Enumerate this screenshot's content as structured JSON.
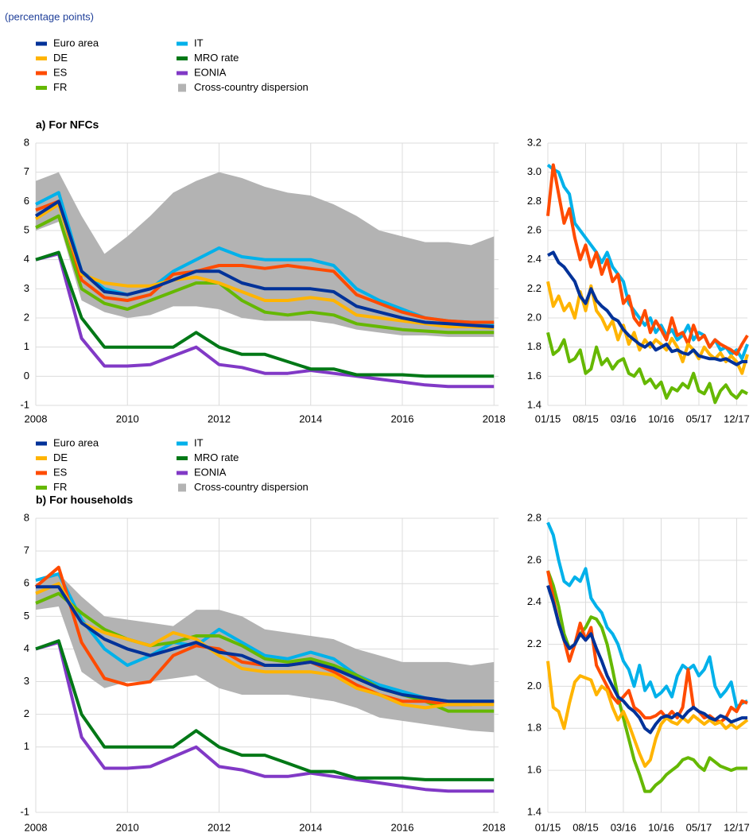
{
  "subtitle": "(percentage points)",
  "chart_data": [
    {
      "type": "line",
      "title": "a) For NFCs",
      "x": [
        2008,
        2008.5,
        2009,
        2009.5,
        2010,
        2010.5,
        2011,
        2011.5,
        2012,
        2012.5,
        2013,
        2013.5,
        2014,
        2014.5,
        2015,
        2015.5,
        2016,
        2016.5,
        2017,
        2017.5,
        2018
      ],
      "xlim": [
        2008,
        2018.1
      ],
      "xticks": [
        2008,
        2010,
        2012,
        2014,
        2016,
        2018
      ],
      "ylim": [
        -1,
        8
      ],
      "yticks": [
        -1,
        0,
        1,
        2,
        3,
        4,
        5,
        6,
        7,
        8
      ],
      "grid": true,
      "band": {
        "name": "Cross-country dispersion",
        "color": "#b3b3b3",
        "upper": [
          6.7,
          7.0,
          5.5,
          4.2,
          4.8,
          5.5,
          6.3,
          6.7,
          7.0,
          6.8,
          6.5,
          6.3,
          6.2,
          5.9,
          5.5,
          5.0,
          4.8,
          4.6,
          4.6,
          4.5,
          4.8
        ],
        "lower": [
          5.0,
          5.3,
          2.6,
          2.2,
          2.0,
          2.1,
          2.4,
          2.4,
          2.3,
          2.0,
          1.9,
          1.9,
          1.9,
          1.8,
          1.6,
          1.5,
          1.4,
          1.4,
          1.35,
          1.35,
          1.35
        ]
      },
      "series": [
        {
          "name": "Euro area",
          "color": "#003299",
          "values": [
            5.5,
            6.0,
            3.6,
            2.9,
            2.8,
            3.0,
            3.3,
            3.6,
            3.6,
            3.2,
            3.0,
            3.0,
            3.0,
            2.9,
            2.4,
            2.2,
            2.0,
            1.85,
            1.8,
            1.75,
            1.7
          ]
        },
        {
          "name": "DE",
          "color": "#ffb400",
          "values": [
            5.4,
            5.9,
            3.5,
            3.2,
            3.1,
            3.1,
            3.3,
            3.4,
            3.2,
            2.9,
            2.6,
            2.6,
            2.7,
            2.6,
            2.1,
            2.0,
            1.9,
            1.8,
            1.7,
            1.7,
            1.65
          ]
        },
        {
          "name": "ES",
          "color": "#ff4b00",
          "values": [
            5.7,
            6.0,
            3.3,
            2.7,
            2.6,
            2.8,
            3.5,
            3.6,
            3.8,
            3.8,
            3.7,
            3.8,
            3.7,
            3.6,
            2.8,
            2.5,
            2.2,
            2.0,
            1.9,
            1.85,
            1.85
          ]
        },
        {
          "name": "FR",
          "color": "#65b800",
          "values": [
            5.1,
            5.5,
            3.0,
            2.5,
            2.3,
            2.6,
            2.9,
            3.2,
            3.2,
            2.6,
            2.2,
            2.1,
            2.2,
            2.1,
            1.8,
            1.7,
            1.6,
            1.55,
            1.5,
            1.5,
            1.5
          ]
        },
        {
          "name": "IT",
          "color": "#00b1ea",
          "values": [
            5.9,
            6.3,
            3.6,
            3.0,
            2.8,
            3.0,
            3.6,
            4.0,
            4.4,
            4.1,
            4.0,
            4.0,
            4.0,
            3.8,
            3.0,
            2.6,
            2.3,
            2.0,
            1.9,
            1.85,
            1.8
          ]
        },
        {
          "name": "MRO rate",
          "color": "#007816",
          "values": [
            4.0,
            4.25,
            2.0,
            1.0,
            1.0,
            1.0,
            1.0,
            1.5,
            1.0,
            0.75,
            0.75,
            0.5,
            0.25,
            0.25,
            0.05,
            0.05,
            0.05,
            0,
            0,
            0,
            0
          ]
        },
        {
          "name": "EONIA",
          "color": "#8139c6",
          "values": [
            4.0,
            4.2,
            1.3,
            0.35,
            0.35,
            0.4,
            0.7,
            1.0,
            0.4,
            0.3,
            0.1,
            0.1,
            0.2,
            0.1,
            0.0,
            -0.1,
            -0.2,
            -0.3,
            -0.35,
            -0.35,
            -0.35
          ]
        }
      ]
    },
    {
      "type": "line",
      "categories": [
        "01/15",
        null,
        null,
        null,
        null,
        null,
        null,
        "08/15",
        null,
        null,
        null,
        null,
        null,
        null,
        "03/16",
        null,
        null,
        null,
        null,
        null,
        null,
        "10/16",
        null,
        null,
        null,
        null,
        null,
        null,
        "05/17",
        null,
        null,
        null,
        null,
        null,
        null,
        "12/17",
        null,
        null
      ],
      "ylim": [
        1.4,
        3.2
      ],
      "yticks": [
        1.4,
        1.6,
        1.8,
        {
          "value": 2,
          "label": "2.0"
        },
        2.2,
        2.4,
        2.6,
        2.8,
        {
          "value": 3,
          "label": "3.0"
        },
        3.2
      ],
      "grid": true,
      "series": [
        {
          "name": "Euro area",
          "color": "#003299",
          "values": [
            2.43,
            2.45,
            2.38,
            2.35,
            2.3,
            2.25,
            2.15,
            2.1,
            2.2,
            2.12,
            2.08,
            2.05,
            2.0,
            1.98,
            1.92,
            1.88,
            1.85,
            1.82,
            1.8,
            1.83,
            1.78,
            1.8,
            1.82,
            1.77,
            1.78,
            1.76,
            1.75,
            1.78,
            1.74,
            1.73,
            1.72,
            1.72,
            1.71,
            1.72,
            1.7,
            1.68,
            1.7,
            1.7
          ]
        },
        {
          "name": "DE",
          "color": "#ffb400",
          "values": [
            2.25,
            2.08,
            2.15,
            2.05,
            2.1,
            2.0,
            2.18,
            2.05,
            2.22,
            2.05,
            2.0,
            1.92,
            1.98,
            1.85,
            1.95,
            1.82,
            1.9,
            1.78,
            1.85,
            1.8,
            1.85,
            1.82,
            1.78,
            1.86,
            1.8,
            1.7,
            1.82,
            1.78,
            1.72,
            1.8,
            1.75,
            1.72,
            1.76,
            1.7,
            1.74,
            1.7,
            1.62,
            1.75
          ]
        },
        {
          "name": "ES",
          "color": "#ff4b00",
          "values": [
            2.7,
            3.05,
            2.85,
            2.65,
            2.75,
            2.55,
            2.4,
            2.5,
            2.35,
            2.45,
            2.3,
            2.4,
            2.25,
            2.3,
            2.1,
            2.15,
            2.0,
            1.95,
            2.05,
            1.9,
            1.98,
            1.92,
            1.85,
            2.0,
            1.88,
            1.9,
            1.82,
            1.95,
            1.85,
            1.88,
            1.8,
            1.85,
            1.82,
            1.8,
            1.78,
            1.75,
            1.82,
            1.88
          ]
        },
        {
          "name": "FR",
          "color": "#65b800",
          "values": [
            1.9,
            1.75,
            1.78,
            1.85,
            1.7,
            1.72,
            1.78,
            1.62,
            1.65,
            1.8,
            1.68,
            1.72,
            1.65,
            1.7,
            1.72,
            1.62,
            1.6,
            1.65,
            1.55,
            1.58,
            1.52,
            1.56,
            1.45,
            1.52,
            1.5,
            1.55,
            1.52,
            1.62,
            1.5,
            1.48,
            1.55,
            1.42,
            1.5,
            1.54,
            1.48,
            1.45,
            1.5,
            1.48
          ]
        },
        {
          "name": "IT",
          "color": "#00b1ea",
          "values": [
            3.05,
            3.02,
            3.0,
            2.9,
            2.85,
            2.65,
            2.6,
            2.55,
            2.5,
            2.45,
            2.38,
            2.45,
            2.35,
            2.3,
            2.25,
            2.1,
            2.05,
            2.0,
            1.95,
            2.0,
            1.9,
            1.95,
            1.88,
            1.92,
            1.85,
            1.88,
            1.95,
            1.85,
            1.9,
            1.88,
            1.8,
            1.85,
            1.78,
            1.8,
            1.75,
            1.78,
            1.72,
            1.82
          ]
        }
      ]
    },
    {
      "type": "line",
      "title": "b) For households",
      "x": [
        2008,
        2008.5,
        2009,
        2009.5,
        2010,
        2010.5,
        2011,
        2011.5,
        2012,
        2012.5,
        2013,
        2013.5,
        2014,
        2014.5,
        2015,
        2015.5,
        2016,
        2016.5,
        2017,
        2017.5,
        2018
      ],
      "xlim": [
        2008,
        2018.1
      ],
      "xticks": [
        2008,
        2010,
        2012,
        2014,
        2016,
        2018
      ],
      "ylim": [
        -1,
        8
      ],
      "yticks": [
        -1,
        1,
        2,
        3,
        4,
        5,
        6,
        7,
        8
      ],
      "grid": true,
      "band": {
        "name": "Cross-country dispersion",
        "color": "#b3b3b3",
        "upper": [
          6.0,
          6.3,
          5.6,
          5.0,
          4.9,
          4.8,
          4.7,
          5.2,
          5.2,
          5.0,
          4.6,
          4.5,
          4.4,
          4.3,
          4.0,
          3.8,
          3.6,
          3.6,
          3.6,
          3.5,
          3.6
        ],
        "lower": [
          5.2,
          5.3,
          3.3,
          2.8,
          3.0,
          3.0,
          3.1,
          3.2,
          2.8,
          2.6,
          2.6,
          2.6,
          2.5,
          2.4,
          2.2,
          1.9,
          1.8,
          1.7,
          1.6,
          1.5,
          1.45
        ]
      },
      "series": [
        {
          "name": "Euro area",
          "color": "#003299",
          "values": [
            5.9,
            5.9,
            4.8,
            4.3,
            4.0,
            3.8,
            4.0,
            4.2,
            3.9,
            3.8,
            3.5,
            3.5,
            3.6,
            3.4,
            3.1,
            2.8,
            2.6,
            2.5,
            2.4,
            2.4,
            2.4
          ]
        },
        {
          "name": "DE",
          "color": "#ffb400",
          "values": [
            5.7,
            6.0,
            4.8,
            4.5,
            4.3,
            4.1,
            4.5,
            4.3,
            3.8,
            3.4,
            3.3,
            3.3,
            3.3,
            3.2,
            2.8,
            2.6,
            2.3,
            2.2,
            2.3,
            2.3,
            2.3
          ]
        },
        {
          "name": "ES",
          "color": "#ff4b00",
          "values": [
            5.9,
            6.5,
            4.2,
            3.1,
            2.9,
            3.0,
            3.8,
            4.1,
            4.0,
            3.6,
            3.5,
            3.5,
            3.6,
            3.3,
            2.9,
            2.6,
            2.4,
            2.4,
            2.3,
            2.3,
            2.4
          ]
        },
        {
          "name": "FR",
          "color": "#65b800",
          "values": [
            5.4,
            5.7,
            5.1,
            4.6,
            4.3,
            4.1,
            4.2,
            4.4,
            4.4,
            4.1,
            3.7,
            3.6,
            3.7,
            3.5,
            3.2,
            2.8,
            2.6,
            2.4,
            2.1,
            2.1,
            2.1
          ]
        },
        {
          "name": "IT",
          "color": "#00b1ea",
          "values": [
            6.1,
            6.3,
            4.9,
            4.0,
            3.5,
            3.8,
            4.2,
            4.1,
            4.6,
            4.2,
            3.8,
            3.7,
            3.9,
            3.7,
            3.2,
            2.9,
            2.7,
            2.5,
            2.4,
            2.4,
            2.4
          ]
        },
        {
          "name": "MRO rate",
          "color": "#007816",
          "values": [
            4.0,
            4.25,
            2.0,
            1.0,
            1.0,
            1.0,
            1.0,
            1.5,
            1.0,
            0.75,
            0.75,
            0.5,
            0.25,
            0.25,
            0.05,
            0.05,
            0.05,
            0,
            0,
            0,
            0
          ]
        },
        {
          "name": "EONIA",
          "color": "#8139c6",
          "values": [
            4.0,
            4.2,
            1.3,
            0.35,
            0.35,
            0.4,
            0.7,
            1.0,
            0.4,
            0.3,
            0.1,
            0.1,
            0.2,
            0.1,
            0.0,
            -0.1,
            -0.2,
            -0.3,
            -0.35,
            -0.35,
            -0.35
          ]
        }
      ]
    },
    {
      "type": "line",
      "categories": [
        "01/15",
        null,
        null,
        null,
        null,
        null,
        null,
        "08/15",
        null,
        null,
        null,
        null,
        null,
        null,
        "03/16",
        null,
        null,
        null,
        null,
        null,
        null,
        "10/16",
        null,
        null,
        null,
        null,
        null,
        null,
        "05/17",
        null,
        null,
        null,
        null,
        null,
        null,
        "12/17",
        null,
        null
      ],
      "ylim": [
        1.4,
        2.8
      ],
      "yticks": [
        1.4,
        1.6,
        1.8,
        {
          "value": 2,
          "label": "2.0"
        },
        2.2,
        2.4,
        2.6,
        2.8
      ],
      "grid": true,
      "series": [
        {
          "name": "Euro area",
          "color": "#003299",
          "values": [
            2.48,
            2.4,
            2.3,
            2.22,
            2.18,
            2.2,
            2.25,
            2.22,
            2.25,
            2.18,
            2.12,
            2.05,
            2.0,
            1.95,
            1.93,
            1.9,
            1.88,
            1.85,
            1.8,
            1.78,
            1.82,
            1.85,
            1.86,
            1.85,
            1.87,
            1.85,
            1.88,
            1.9,
            1.88,
            1.87,
            1.85,
            1.84,
            1.86,
            1.85,
            1.83,
            1.84,
            1.85,
            1.85
          ]
        },
        {
          "name": "DE",
          "color": "#ffb400",
          "values": [
            2.12,
            1.9,
            1.88,
            1.8,
            1.92,
            2.02,
            2.05,
            2.04,
            2.03,
            1.96,
            2.0,
            1.98,
            1.9,
            1.84,
            1.88,
            1.82,
            1.75,
            1.68,
            1.62,
            1.65,
            1.75,
            1.82,
            1.85,
            1.83,
            1.82,
            1.85,
            1.83,
            1.86,
            1.84,
            1.82,
            1.84,
            1.82,
            1.83,
            1.8,
            1.82,
            1.8,
            1.82,
            1.84
          ]
        },
        {
          "name": "ES",
          "color": "#ff4b00",
          "values": [
            2.55,
            2.42,
            2.3,
            2.22,
            2.12,
            2.2,
            2.3,
            2.22,
            2.28,
            2.1,
            2.05,
            2.0,
            1.95,
            1.92,
            1.95,
            1.98,
            1.9,
            1.88,
            1.85,
            1.85,
            1.86,
            1.88,
            1.85,
            1.88,
            1.85,
            1.9,
            2.08,
            1.9,
            1.88,
            1.85,
            1.86,
            1.84,
            1.83,
            1.85,
            1.9,
            1.88,
            1.93,
            1.92
          ]
        },
        {
          "name": "FR",
          "color": "#65b800",
          "values": [
            2.55,
            2.48,
            2.38,
            2.25,
            2.18,
            2.2,
            2.25,
            2.28,
            2.33,
            2.32,
            2.28,
            2.2,
            2.08,
            1.95,
            1.85,
            1.75,
            1.65,
            1.58,
            1.5,
            1.5,
            1.53,
            1.55,
            1.58,
            1.6,
            1.62,
            1.65,
            1.66,
            1.65,
            1.62,
            1.6,
            1.66,
            1.64,
            1.62,
            1.61,
            1.6,
            1.61,
            1.61,
            1.61
          ]
        },
        {
          "name": "IT",
          "color": "#00b1ea",
          "values": [
            2.78,
            2.72,
            2.6,
            2.5,
            2.48,
            2.52,
            2.5,
            2.56,
            2.42,
            2.38,
            2.35,
            2.28,
            2.25,
            2.2,
            2.12,
            2.08,
            2.0,
            2.1,
            1.98,
            2.02,
            1.95,
            1.97,
            2.0,
            1.95,
            2.05,
            2.1,
            2.08,
            2.1,
            2.05,
            2.08,
            2.14,
            2.0,
            1.95,
            1.98,
            2.02,
            1.9,
            1.92,
            1.93
          ]
        }
      ]
    }
  ]
}
